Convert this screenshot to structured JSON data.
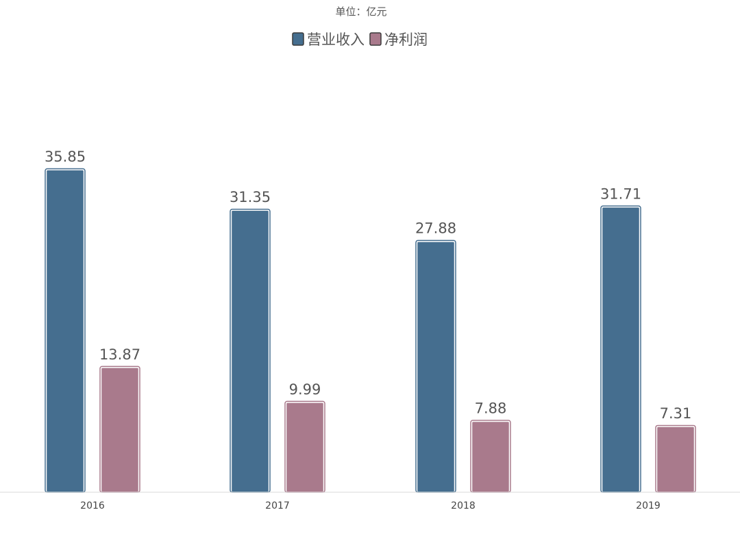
{
  "chart_data": {
    "type": "bar",
    "unit_label": "单位：亿元",
    "categories": [
      "2016",
      "2017",
      "2018",
      "2019"
    ],
    "series": [
      {
        "name": "营业收入",
        "color": "#456e8f",
        "values": [
          35.85,
          31.35,
          27.88,
          31.71
        ],
        "labels": [
          "35.85",
          "31.35",
          "27.88",
          "31.71"
        ]
      },
      {
        "name": "净利润",
        "color": "#a97a8c",
        "values": [
          13.87,
          9.99,
          7.88,
          7.31
        ],
        "labels": [
          "13.87",
          "9.99",
          "7.88",
          "7.31"
        ]
      }
    ],
    "ylim": [
      0,
      40
    ],
    "legend_position": "top-center",
    "grid": false,
    "xlabel": "",
    "ylabel": ""
  }
}
